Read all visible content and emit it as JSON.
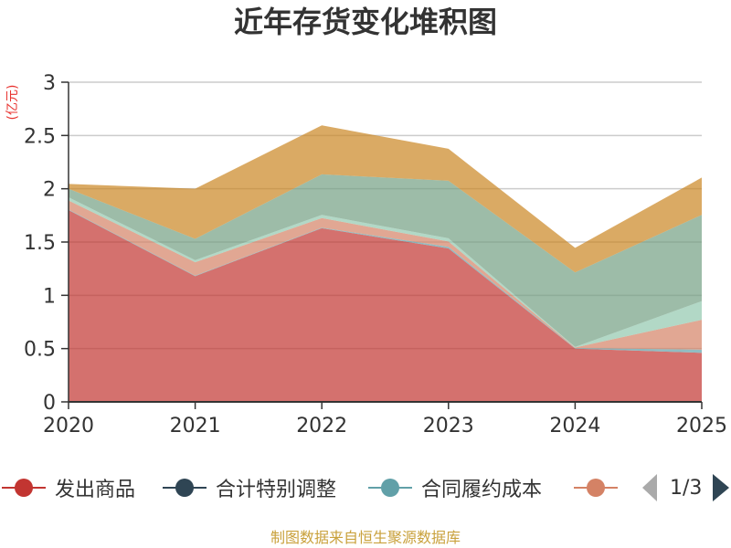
{
  "title": "近年存货变化堆积图",
  "y_unit": "(亿元)",
  "footer": "制图数据来自恒生聚源数据库",
  "legend": {
    "items": [
      {
        "label": "发出商品",
        "color": "#c23531"
      },
      {
        "label": "合计特别调整",
        "color": "#2f4554"
      },
      {
        "label": "合同履约成本",
        "color": "#61a0a8"
      },
      {
        "label": "",
        "color": "#d48265"
      }
    ],
    "page": "1/3",
    "prev_icon": "triangle-left",
    "next_icon": "triangle-right"
  },
  "colors": {
    "title": "#333333",
    "unit": "#e8332f",
    "footer": "#c9a13c",
    "grid": "#cccccc",
    "axis": "#333333"
  },
  "chart_data": {
    "type": "area",
    "stacked": true,
    "title": "近年存货变化堆积图",
    "xlabel": "",
    "ylabel": "(亿元)",
    "categories": [
      "2020",
      "2021",
      "2022",
      "2023",
      "2024",
      "2025"
    ],
    "ylim": [
      0,
      3
    ],
    "yticks": [
      "0",
      "0.5",
      "1",
      "1.5",
      "2",
      "2.5",
      "3"
    ],
    "grid": true,
    "legend_position": "bottom",
    "area_opacity": 0.7,
    "series": [
      {
        "name": "发出商品",
        "color": "#c23531",
        "values": [
          1.8,
          1.18,
          1.63,
          1.44,
          0.5,
          0.46
        ]
      },
      {
        "name": "合计特别调整",
        "color": "#2f4554",
        "values": [
          0,
          0,
          0,
          0,
          0,
          0
        ]
      },
      {
        "name": "合同履约成本",
        "color": "#61a0a8",
        "values": [
          0.005,
          0.005,
          0.005,
          0.015,
          0.005,
          0.03
        ]
      },
      {
        "name": "",
        "color": "#d48265",
        "values": [
          0.085,
          0.125,
          0.09,
          0.05,
          0.005,
          0.28
        ]
      },
      {
        "name": "",
        "color": "#91c7ae",
        "values": [
          0.03,
          0.02,
          0.03,
          0.03,
          0.005,
          0.175
        ]
      },
      {
        "name": "",
        "color": "#749f83",
        "values": [
          0.08,
          0.2,
          0.38,
          0.54,
          0.7,
          0.81
        ]
      },
      {
        "name": "",
        "color": "#ca8622",
        "values": [
          0.045,
          0.47,
          0.46,
          0.3,
          0.23,
          0.35
        ]
      }
    ]
  }
}
